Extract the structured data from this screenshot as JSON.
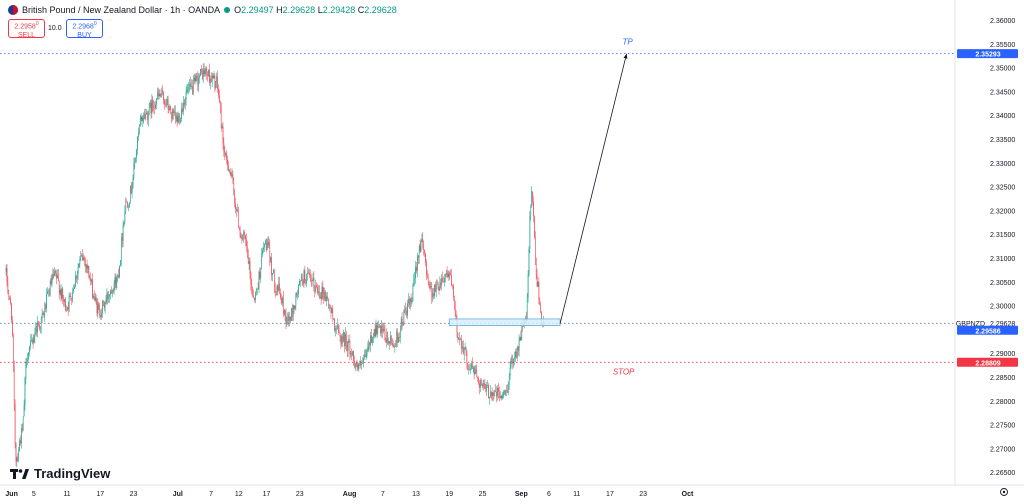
{
  "header": {
    "title": "British Pound / New Zealand Dollar · 1h · OANDA",
    "ohlc": [
      {
        "key": "O",
        "value": "2.29497"
      },
      {
        "key": "H",
        "value": "2.29628"
      },
      {
        "key": "L",
        "value": "2.29428"
      },
      {
        "key": "C",
        "value": "2.29628"
      }
    ]
  },
  "trade": {
    "sell_price": "2.2958",
    "sell_sup": "0",
    "sell_label": "SELL",
    "qty": "10.0",
    "buy_price": "2.2968",
    "buy_sup": "0",
    "buy_label": "BUY"
  },
  "brand": "TradingView",
  "colors": {
    "up": "#089981",
    "down": "#f23645",
    "tp": "#2962ff",
    "stop": "#f23645",
    "zone_fill": "#d6eef9",
    "zone_stroke": "#5fb2d8"
  },
  "chart_data": {
    "type": "candlestick",
    "symbol_label": "GBPNZD",
    "ylim": [
      2.2625,
      2.3625
    ],
    "y_ticks": [
      "2.36000",
      "2.35500",
      "2.35000",
      "2.34500",
      "2.34000",
      "2.33500",
      "2.33000",
      "2.32500",
      "2.32000",
      "2.31500",
      "2.31000",
      "2.30500",
      "2.30000",
      "2.29500",
      "2.29000",
      "2.28500",
      "2.28000",
      "2.27500",
      "2.27000",
      "2.26500"
    ],
    "x_labels": [
      "Jun",
      "5",
      "11",
      "17",
      "23",
      "Jul",
      "7",
      "12",
      "17",
      "23",
      "Aug",
      "7",
      "13",
      "19",
      "25",
      "Sep",
      "6",
      "11",
      "17",
      "23",
      "Oct"
    ],
    "price_key_points": [
      {
        "date": "May 31",
        "price": 2.307
      },
      {
        "date": "Jun 1",
        "price": 2.3
      },
      {
        "date": "Jun 2",
        "price": 2.268
      },
      {
        "date": "Jun 3",
        "price": 2.273
      },
      {
        "date": "Jun 4",
        "price": 2.29
      },
      {
        "date": "Jun 6",
        "price": 2.296
      },
      {
        "date": "Jun 9",
        "price": 2.306
      },
      {
        "date": "Jun 11",
        "price": 2.3
      },
      {
        "date": "Jun 14",
        "price": 2.31
      },
      {
        "date": "Jun 17",
        "price": 2.299
      },
      {
        "date": "Jun 20",
        "price": 2.305
      },
      {
        "date": "Jun 22",
        "price": 2.322
      },
      {
        "date": "Jun 25",
        "price": 2.34
      },
      {
        "date": "Jun 28",
        "price": 2.344
      },
      {
        "date": "Jul 1",
        "price": 2.339
      },
      {
        "date": "Jul 3",
        "price": 2.345
      },
      {
        "date": "Jul 6",
        "price": 2.349
      },
      {
        "date": "Jul 8",
        "price": 2.347
      },
      {
        "date": "Jul 10",
        "price": 2.33
      },
      {
        "date": "Jul 13",
        "price": 2.314
      },
      {
        "date": "Jul 15",
        "price": 2.302
      },
      {
        "date": "Jul 17",
        "price": 2.313
      },
      {
        "date": "Jul 19",
        "price": 2.304
      },
      {
        "date": "Jul 21",
        "price": 2.297
      },
      {
        "date": "Jul 24",
        "price": 2.306
      },
      {
        "date": "Jul 27",
        "price": 2.303
      },
      {
        "date": "Jul 31",
        "price": 2.293
      },
      {
        "date": "Aug 3",
        "price": 2.287
      },
      {
        "date": "Aug 6",
        "price": 2.295
      },
      {
        "date": "Aug 9",
        "price": 2.292
      },
      {
        "date": "Aug 12",
        "price": 2.3
      },
      {
        "date": "Aug 14",
        "price": 2.313
      },
      {
        "date": "Aug 16",
        "price": 2.303
      },
      {
        "date": "Aug 19",
        "price": 2.307
      },
      {
        "date": "Aug 21",
        "price": 2.293
      },
      {
        "date": "Aug 23",
        "price": 2.287
      },
      {
        "date": "Aug 26",
        "price": 2.282
      },
      {
        "date": "Aug 29",
        "price": 2.281
      },
      {
        "date": "Aug 31",
        "price": 2.29
      },
      {
        "date": "Sep 2",
        "price": 2.297
      },
      {
        "date": "Sep 3",
        "price": 2.323
      },
      {
        "date": "Sep 4",
        "price": 2.305
      },
      {
        "date": "Sep 5",
        "price": 2.2962
      }
    ],
    "annotations": {
      "tp": {
        "label": "TP",
        "price": 2.35293,
        "price_label": "2.35293"
      },
      "stop": {
        "label": "STOP",
        "price": 2.28809,
        "price_label": "2.28809"
      },
      "current": {
        "label": "GBPNZD",
        "price": 2.29628,
        "price_label": "2.29628"
      },
      "entry": {
        "price": 2.29586,
        "price_label": "2.29586"
      },
      "zone": {
        "start": "Aug 19",
        "end": "Sep 8",
        "top": 2.2972,
        "bottom": 2.2958
      },
      "arrow": {
        "from_date": "Sep 8",
        "from_price": 2.2962,
        "to_date": "Sep 20",
        "to_price": 2.3529
      }
    }
  }
}
